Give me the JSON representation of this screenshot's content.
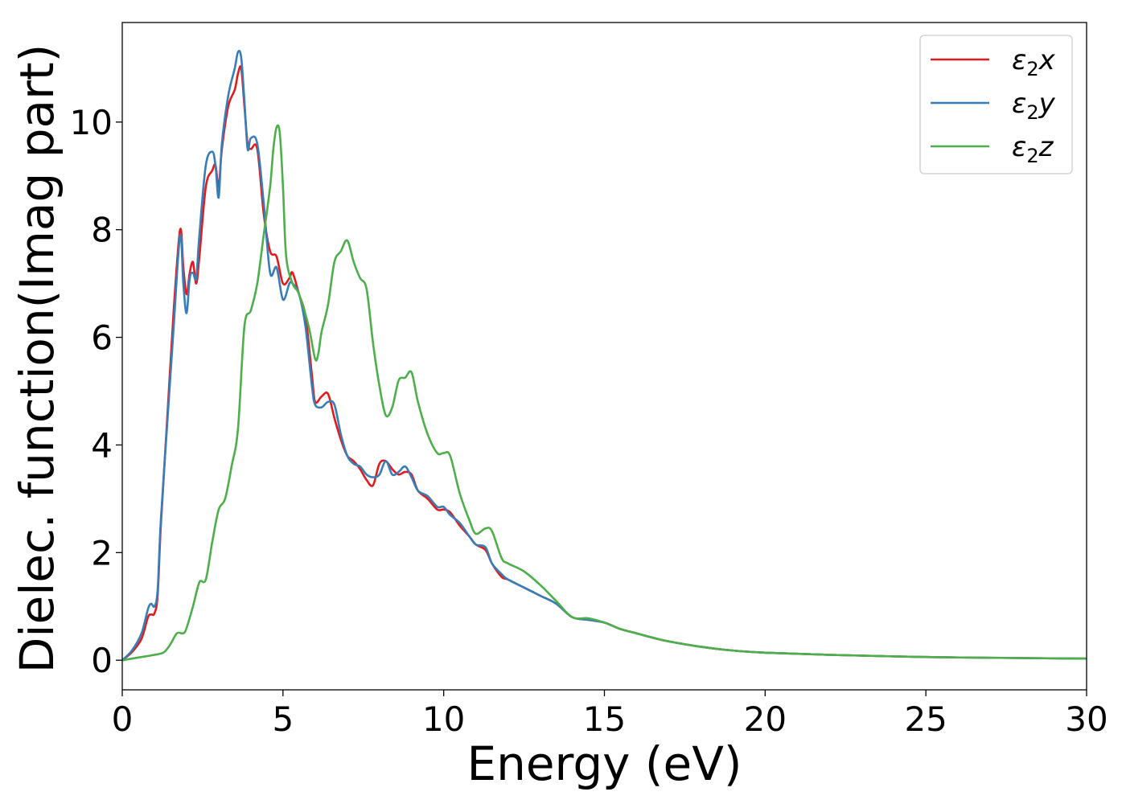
{
  "chart_data": {
    "type": "line",
    "xlabel": "Energy (eV)",
    "ylabel": "Dielec. function(Imag part)",
    "xlim": [
      0,
      30
    ],
    "ylim": [
      -0.55,
      11.85
    ],
    "xticks": [
      0,
      5,
      10,
      15,
      20,
      25,
      30
    ],
    "yticks": [
      0,
      2,
      4,
      6,
      8,
      10
    ],
    "grid": false,
    "legend_position": "top-right",
    "series": [
      {
        "name": "ε2x",
        "base": "ε",
        "sub": "2",
        "suffix": "x",
        "color": "#e41a1c",
        "x": [
          0,
          0.3,
          0.6,
          0.8,
          0.9,
          1.0,
          1.1,
          1.2,
          1.4,
          1.6,
          1.8,
          1.9,
          2.0,
          2.1,
          2.2,
          2.3,
          2.4,
          2.6,
          2.8,
          2.9,
          3.0,
          3.1,
          3.3,
          3.5,
          3.6,
          3.7,
          3.8,
          3.9,
          4.0,
          4.2,
          4.4,
          4.6,
          4.8,
          5.0,
          5.2,
          5.3,
          5.5,
          5.7,
          5.9,
          6.0,
          6.2,
          6.4,
          6.6,
          6.8,
          7.0,
          7.2,
          7.4,
          7.6,
          7.8,
          8.0,
          8.2,
          8.4,
          8.6,
          8.8,
          9.0,
          9.2,
          9.5,
          9.8,
          10.0,
          10.2,
          10.5,
          10.8,
          11.0,
          11.3,
          11.5,
          11.8,
          12.0,
          12.5,
          13.0,
          13.5,
          14.0,
          14.5,
          15.0,
          15.5,
          16.0,
          16.5,
          17.0,
          18.0,
          19.0,
          20.0,
          22.0,
          25.0,
          28.0,
          30.0
        ],
        "y": [
          0,
          0.15,
          0.4,
          0.8,
          0.85,
          0.87,
          1.2,
          2.5,
          4.5,
          6.5,
          8.0,
          7.3,
          6.8,
          7.2,
          7.4,
          7.0,
          7.5,
          8.8,
          9.1,
          9.2,
          8.8,
          9.5,
          10.3,
          10.6,
          10.9,
          11.0,
          10.3,
          9.6,
          9.5,
          9.5,
          8.3,
          7.6,
          7.5,
          7.0,
          7.1,
          7.2,
          6.8,
          6.4,
          5.3,
          4.8,
          4.9,
          4.95,
          4.5,
          4.1,
          3.8,
          3.7,
          3.55,
          3.35,
          3.25,
          3.65,
          3.7,
          3.55,
          3.45,
          3.5,
          3.45,
          3.15,
          3.0,
          2.8,
          2.8,
          2.75,
          2.5,
          2.3,
          2.15,
          2.05,
          1.8,
          1.55,
          1.5,
          1.35,
          1.2,
          1.05,
          0.8,
          0.75,
          0.7,
          0.58,
          0.5,
          0.42,
          0.35,
          0.25,
          0.18,
          0.14,
          0.1,
          0.06,
          0.04,
          0.03
        ]
      },
      {
        "name": "ε2y",
        "base": "ε",
        "sub": "2",
        "suffix": "y",
        "color": "#377eb8",
        "x": [
          0,
          0.3,
          0.6,
          0.8,
          0.9,
          1.0,
          1.1,
          1.2,
          1.4,
          1.6,
          1.8,
          1.9,
          2.0,
          2.1,
          2.2,
          2.3,
          2.4,
          2.6,
          2.8,
          2.9,
          3.0,
          3.1,
          3.3,
          3.5,
          3.6,
          3.7,
          3.8,
          3.9,
          4.0,
          4.2,
          4.4,
          4.6,
          4.8,
          5.0,
          5.2,
          5.3,
          5.5,
          5.7,
          5.9,
          6.0,
          6.2,
          6.4,
          6.6,
          6.8,
          7.0,
          7.2,
          7.4,
          7.6,
          7.8,
          8.0,
          8.2,
          8.4,
          8.6,
          8.8,
          9.0,
          9.2,
          9.5,
          9.8,
          10.0,
          10.2,
          10.5,
          10.8,
          11.0,
          11.3,
          11.5,
          11.8,
          12.0,
          12.5,
          13.0,
          13.5,
          14.0,
          14.5,
          15.0,
          15.5,
          16.0,
          16.5,
          17.0,
          18.0,
          19.0,
          20.0,
          22.0,
          25.0,
          28.0,
          30.0
        ],
        "y": [
          0,
          0.18,
          0.5,
          0.95,
          1.05,
          1.0,
          1.3,
          2.6,
          4.4,
          6.2,
          7.9,
          7.0,
          6.45,
          7.1,
          7.2,
          7.1,
          7.9,
          9.2,
          9.45,
          9.2,
          8.6,
          9.6,
          10.5,
          11.0,
          11.3,
          11.2,
          10.4,
          9.5,
          9.7,
          9.6,
          8.5,
          7.2,
          7.3,
          6.7,
          7.0,
          7.0,
          6.8,
          6.2,
          5.1,
          4.75,
          4.7,
          4.8,
          4.75,
          4.2,
          3.8,
          3.65,
          3.6,
          3.45,
          3.4,
          3.45,
          3.7,
          3.45,
          3.5,
          3.6,
          3.4,
          3.15,
          3.05,
          2.85,
          2.85,
          2.7,
          2.55,
          2.3,
          2.15,
          2.1,
          1.8,
          1.6,
          1.5,
          1.35,
          1.2,
          1.05,
          0.8,
          0.75,
          0.7,
          0.58,
          0.5,
          0.42,
          0.35,
          0.25,
          0.18,
          0.14,
          0.1,
          0.06,
          0.04,
          0.03
        ]
      },
      {
        "name": "ε2z",
        "base": "ε",
        "sub": "2",
        "suffix": "z",
        "color": "#4daf4a",
        "x": [
          0,
          0.5,
          1.0,
          1.3,
          1.5,
          1.7,
          1.9,
          2.0,
          2.2,
          2.4,
          2.6,
          2.8,
          3.0,
          3.2,
          3.4,
          3.6,
          3.8,
          4.0,
          4.2,
          4.4,
          4.6,
          4.7,
          4.8,
          4.9,
          5.0,
          5.1,
          5.3,
          5.5,
          5.8,
          6.0,
          6.1,
          6.2,
          6.4,
          6.6,
          6.8,
          7.0,
          7.2,
          7.4,
          7.6,
          7.8,
          8.0,
          8.2,
          8.4,
          8.6,
          8.8,
          9.0,
          9.2,
          9.5,
          9.8,
          10.0,
          10.2,
          10.5,
          10.8,
          11.0,
          11.3,
          11.5,
          11.8,
          12.0,
          12.5,
          13.0,
          13.5,
          14.0,
          14.5,
          15.0,
          15.5,
          16.0,
          16.5,
          17.0,
          18.0,
          19.0,
          20.0,
          22.0,
          25.0,
          28.0,
          30.0
        ],
        "y": [
          0,
          0.05,
          0.1,
          0.15,
          0.3,
          0.5,
          0.5,
          0.6,
          1.0,
          1.45,
          1.5,
          2.2,
          2.8,
          3.0,
          3.6,
          4.3,
          6.2,
          6.5,
          7.0,
          7.9,
          8.8,
          9.5,
          9.9,
          9.8,
          8.8,
          7.5,
          7.0,
          6.8,
          6.2,
          5.6,
          5.7,
          6.1,
          6.6,
          7.4,
          7.6,
          7.8,
          7.4,
          7.1,
          6.9,
          5.9,
          5.1,
          4.55,
          4.7,
          5.2,
          5.25,
          5.35,
          4.8,
          4.2,
          3.85,
          3.85,
          3.8,
          3.1,
          2.6,
          2.35,
          2.45,
          2.4,
          1.9,
          1.8,
          1.65,
          1.4,
          1.1,
          0.8,
          0.78,
          0.7,
          0.58,
          0.5,
          0.42,
          0.35,
          0.25,
          0.18,
          0.14,
          0.1,
          0.06,
          0.04,
          0.03
        ]
      }
    ]
  }
}
